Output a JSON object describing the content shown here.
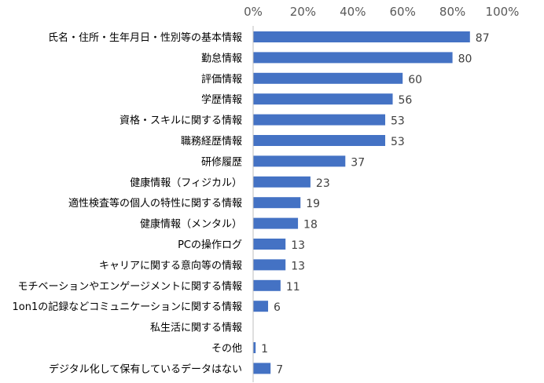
{
  "chart_data": {
    "type": "bar",
    "orientation": "horizontal",
    "title": "",
    "xlabel": "",
    "ylabel": "",
    "xlim": [
      0,
      100
    ],
    "x_ticks": [
      "0%",
      "20%",
      "40%",
      "60%",
      "80%",
      "100%"
    ],
    "x_tick_values": [
      0,
      20,
      40,
      60,
      80,
      100
    ],
    "x_axis_position": "top",
    "grid": false,
    "legend": "none",
    "bar_color": "#4472C4",
    "categories": [
      "氏名・住所・生年月日・性別等の基本情報",
      "勤怠情報",
      "評価情報",
      "学歴情報",
      "資格・スキルに関する情報",
      "職務経歴情報",
      "研修履歴",
      "健康情報（フィジカル）",
      "適性検査等の個人の特性に関する情報",
      "健康情報（メンタル）",
      "PCの操作ログ",
      "キャリアに関する意向等の情報",
      "モチベーションやエンゲージメントに関する情報",
      "1on1の記録などコミュニケーションに関する情報",
      "私生活に関する情報",
      "その他",
      "デジタル化して保有しているデータはない"
    ],
    "values": [
      87,
      80,
      60,
      56,
      53,
      53,
      37,
      23,
      19,
      18,
      13,
      13,
      11,
      6,
      0,
      1,
      7
    ],
    "data_labels": [
      "87",
      "80",
      "60",
      "56",
      "53",
      "53",
      "37",
      "23",
      "19",
      "18",
      "13",
      "13",
      "11",
      "6",
      "",
      "1",
      "7"
    ]
  }
}
